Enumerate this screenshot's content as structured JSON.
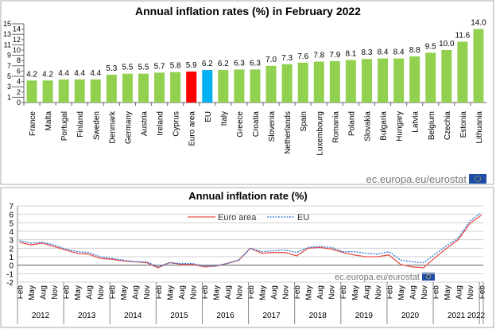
{
  "chart_data": [
    {
      "type": "bar",
      "title": "Annual inflation rates (%) in February 2022",
      "categories": [
        "France",
        "Malta",
        "Portugal",
        "Finland",
        "Sweden",
        "Denmark",
        "Germany",
        "Austria",
        "Ireland",
        "Cyprus",
        "Euro area",
        "EU",
        "Italy",
        "Greece",
        "Croatia",
        "Slovenia",
        "Netherlands",
        "Spain",
        "Luxembourg",
        "Romania",
        "Poland",
        "Slovakia",
        "Bulgaria",
        "Hungary",
        "Latvia",
        "Belgium",
        "Czechia",
        "Estonia",
        "Lithuania"
      ],
      "values": [
        4.2,
        4.2,
        4.4,
        4.4,
        4.4,
        5.3,
        5.5,
        5.5,
        5.7,
        5.8,
        5.9,
        6.2,
        6.2,
        6.3,
        6.3,
        7.0,
        7.3,
        7.6,
        7.8,
        7.9,
        8.1,
        8.3,
        8.4,
        8.4,
        8.8,
        9.5,
        10.0,
        11.6,
        14.0
      ],
      "colors": {
        "default": "#92d050",
        "Euro area": "#ff0000",
        "EU": "#00b0f0"
      },
      "ylim": [
        0,
        15
      ],
      "yticks": [
        0,
        1,
        2,
        3,
        4,
        5,
        6,
        7,
        8,
        9,
        10,
        11,
        12,
        13,
        14,
        15
      ],
      "source": "ec.europa.eu/eurostat"
    },
    {
      "type": "line",
      "title": "Annual inflation rate (%)",
      "x": [
        "Feb 2012",
        "May 2012",
        "Aug 2012",
        "Nov 2012",
        "Feb 2013",
        "May 2013",
        "Aug 2013",
        "Nov 2013",
        "Feb 2014",
        "May 2014",
        "Aug 2014",
        "Nov 2014",
        "Feb 2015",
        "May 2015",
        "Aug 2015",
        "Nov 2015",
        "Feb 2016",
        "May 2016",
        "Aug 2016",
        "Nov 2016",
        "Feb 2017",
        "May 2017",
        "Aug 2017",
        "Nov 2017",
        "Feb 2018",
        "May 2018",
        "Aug 2018",
        "Nov 2018",
        "Feb 2019",
        "May 2019",
        "Aug 2019",
        "Nov 2019",
        "Feb 2020",
        "May 2020",
        "Aug 2020",
        "Nov 2020",
        "Feb 2021",
        "May 2021",
        "Aug 2021",
        "Nov 2021",
        "Feb 2022"
      ],
      "month_ticks": [
        "Feb",
        "May",
        "Aug",
        "Nov"
      ],
      "years": [
        "2012",
        "2013",
        "2014",
        "2015",
        "2016",
        "2017",
        "2018",
        "2019",
        "2020",
        "2021",
        "2022"
      ],
      "series": [
        {
          "name": "Euro area",
          "color": "#e8504a",
          "style": "solid",
          "values": [
            2.7,
            2.4,
            2.6,
            2.2,
            1.8,
            1.4,
            1.3,
            0.8,
            0.7,
            0.5,
            0.4,
            0.3,
            -0.3,
            0.3,
            0.1,
            0.1,
            -0.2,
            -0.1,
            0.2,
            0.6,
            2.0,
            1.4,
            1.5,
            1.5,
            1.1,
            2.0,
            2.1,
            1.9,
            1.5,
            1.2,
            1.0,
            1.0,
            1.2,
            0.1,
            -0.2,
            -0.3,
            0.9,
            2.0,
            3.0,
            4.9,
            5.9
          ]
        },
        {
          "name": "EU",
          "color": "#2e75d6",
          "style": "dotted",
          "values": [
            2.9,
            2.6,
            2.7,
            2.4,
            1.9,
            1.6,
            1.5,
            1.0,
            0.8,
            0.6,
            0.4,
            0.4,
            -0.2,
            0.3,
            0.2,
            0.2,
            -0.1,
            -0.1,
            0.2,
            0.6,
            2.0,
            1.6,
            1.7,
            1.8,
            1.5,
            2.1,
            2.2,
            2.1,
            1.6,
            1.6,
            1.4,
            1.3,
            1.6,
            0.6,
            0.4,
            0.3,
            1.3,
            2.3,
            3.2,
            5.2,
            6.2
          ]
        }
      ],
      "ylim": [
        -2,
        7
      ],
      "yticks": [
        -2,
        -1,
        0,
        1,
        2,
        3,
        4,
        5,
        6,
        7
      ],
      "grid": true,
      "legend": "top-center",
      "source": "ec.europa.eu/eurostat"
    }
  ]
}
